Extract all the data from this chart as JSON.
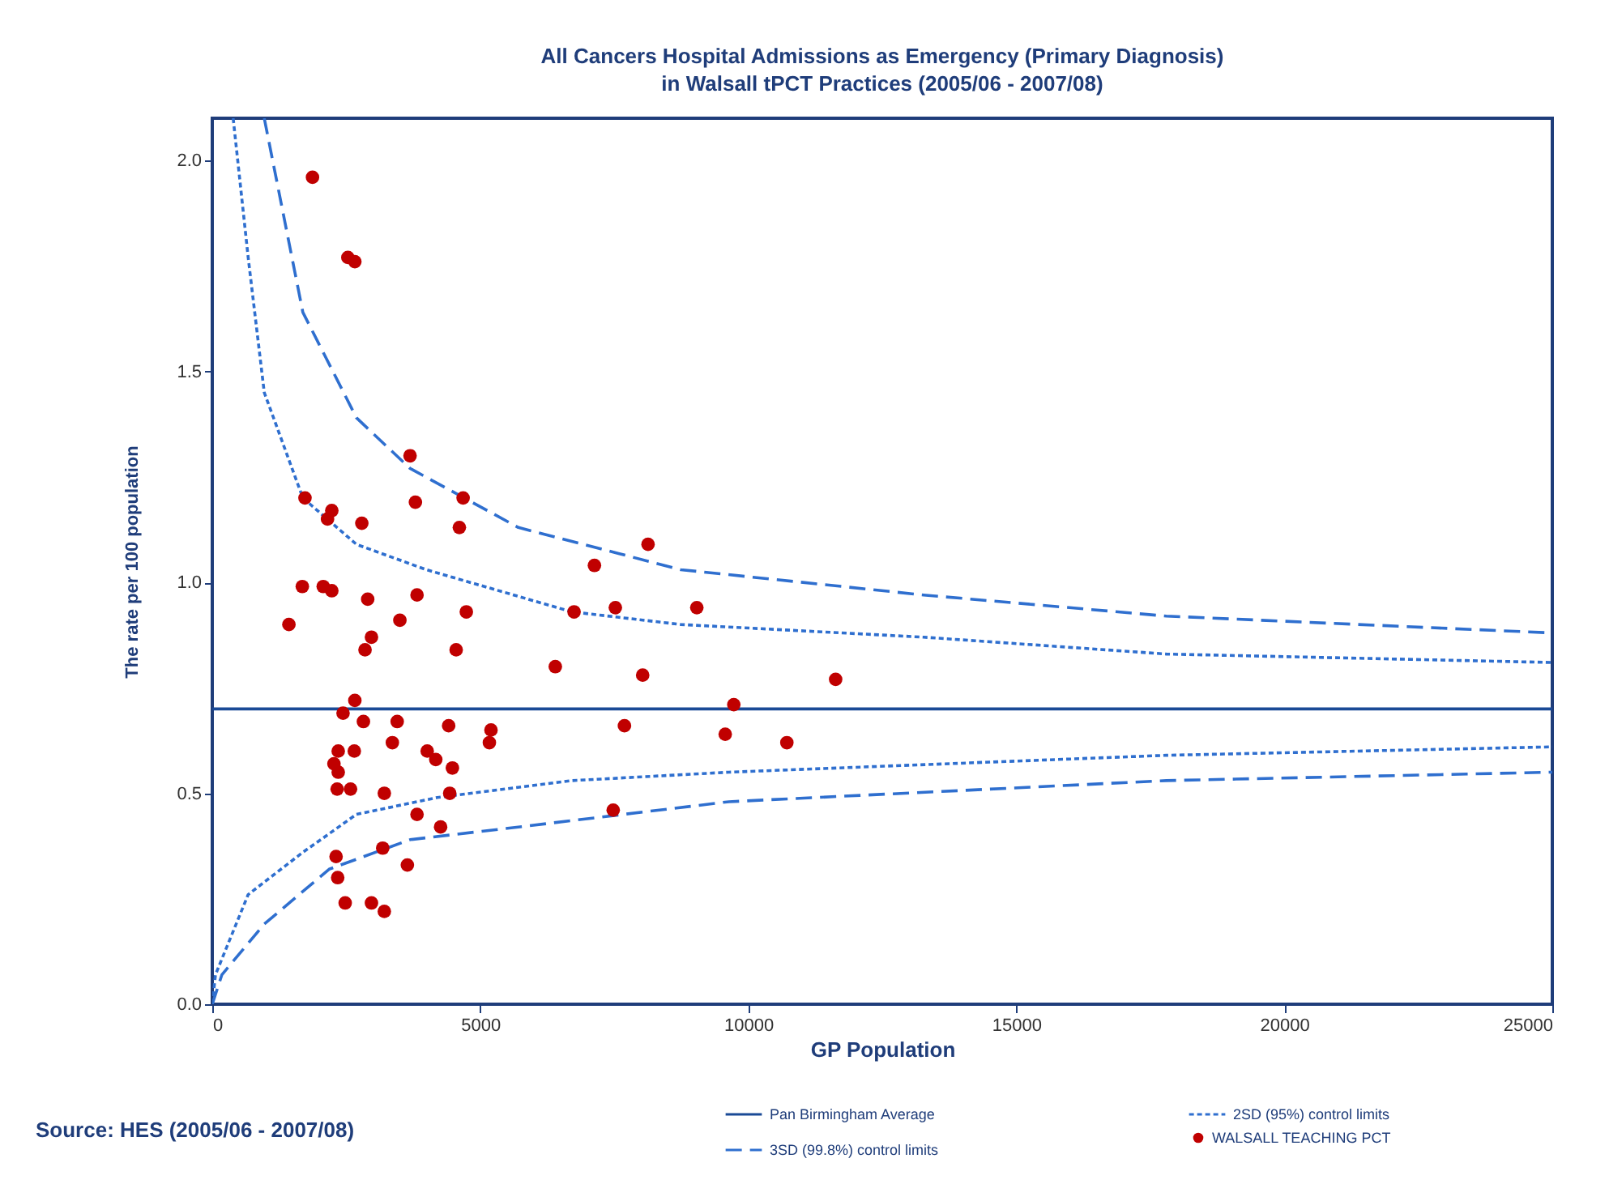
{
  "chart_data": {
    "type": "scatter",
    "title": "All Cancers Hospital Admissions as Emergency (Primary Diagnosis)\nin Walsall tPCT Practices (2005/06  - 2007/08)",
    "xlabel": "GP Population",
    "ylabel": "The rate per 100 population",
    "xlim": [
      0,
      25000
    ],
    "xticks": [
      0,
      5000,
      10000,
      15000,
      20000,
      25000
    ],
    "ylim": [
      0,
      2.1
    ],
    "yticks": [
      {
        "value": 0,
        "label": "0.0"
      },
      {
        "value": 0.5,
        "label": "0.5"
      },
      {
        "value": 1,
        "label": "1.0"
      },
      {
        "value": 1.5,
        "label": "1.5"
      },
      {
        "value": 2,
        "label": "2.0"
      }
    ],
    "grid": false,
    "legend": "bottom",
    "annotations": [
      "Source: HES (2005/06 - 2007/08)"
    ],
    "series": [
      {
        "name": "Pan Birmingham Average",
        "type": "line",
        "line_style": "solid",
        "color": "#1a4a96",
        "x": [
          0,
          25000
        ],
        "values": [
          0.7,
          0.7
        ]
      },
      {
        "name": "2SD (95%) control limits",
        "type": "line",
        "line_style": "dotted",
        "color": "#2f6fcf",
        "x": [
          390,
          670,
          970,
          1690,
          2690,
          3990,
          6710,
          8740,
          13270,
          17800,
          25000,
          null,
          0,
          60,
          670,
          1690,
          2690,
          4200,
          6710,
          9640,
          17800,
          25000
        ],
        "values": [
          2.1,
          1.77,
          1.45,
          1.2,
          1.09,
          1.03,
          0.93,
          0.9,
          0.87,
          0.83,
          0.81,
          null,
          0,
          0.07,
          0.26,
          0.36,
          0.45,
          0.49,
          0.53,
          0.55,
          0.59,
          0.61
        ]
      },
      {
        "name": "3SD (99.8%) control limits",
        "type": "line",
        "line_style": "dashed",
        "color": "#2f6fcf",
        "x": [
          970,
          1690,
          2690,
          3690,
          5710,
          8740,
          13270,
          17800,
          25000,
          null,
          0,
          180,
          970,
          2180,
          3690,
          5710,
          9640,
          17800,
          25000
        ],
        "values": [
          2.1,
          1.64,
          1.39,
          1.27,
          1.13,
          1.03,
          0.97,
          0.92,
          0.88,
          null,
          0,
          0.07,
          0.19,
          0.32,
          0.39,
          0.42,
          0.48,
          0.53,
          0.55
        ]
      },
      {
        "name": "WALSALL TEACHING PCT",
        "marker": "circle",
        "color": "#c00000",
        "x": [
          1870,
          2530,
          2660,
          3690,
          1730,
          2230,
          2150,
          2790,
          3790,
          4680,
          4610,
          7130,
          8130,
          1430,
          1680,
          2070,
          2230,
          2900,
          3820,
          3500,
          4740,
          2970,
          2850,
          4550,
          6400,
          6750,
          7520,
          9040,
          8030,
          2660,
          2440,
          2820,
          3450,
          4410,
          5200,
          5170,
          3360,
          7690,
          9570,
          2350,
          2650,
          4010,
          4170,
          4480,
          2270,
          2350,
          2330,
          2580,
          3210,
          4430,
          3820,
          4260,
          7480,
          3180,
          3640,
          2310,
          2340,
          2480,
          2970,
          3210,
          11630,
          9730,
          10720
        ],
        "values": [
          1.96,
          1.77,
          1.76,
          1.3,
          1.2,
          1.17,
          1.15,
          1.14,
          1.19,
          1.2,
          1.13,
          1.04,
          1.09,
          0.9,
          0.99,
          0.99,
          0.98,
          0.96,
          0.97,
          0.91,
          0.93,
          0.87,
          0.84,
          0.84,
          0.8,
          0.93,
          0.94,
          0.94,
          0.78,
          0.72,
          0.69,
          0.67,
          0.67,
          0.66,
          0.65,
          0.62,
          0.62,
          0.66,
          0.64,
          0.6,
          0.6,
          0.6,
          0.58,
          0.56,
          0.57,
          0.55,
          0.51,
          0.51,
          0.5,
          0.5,
          0.45,
          0.42,
          0.46,
          0.37,
          0.33,
          0.35,
          0.3,
          0.24,
          0.24,
          0.22,
          0.77,
          0.71,
          0.62
        ]
      }
    ]
  }
}
